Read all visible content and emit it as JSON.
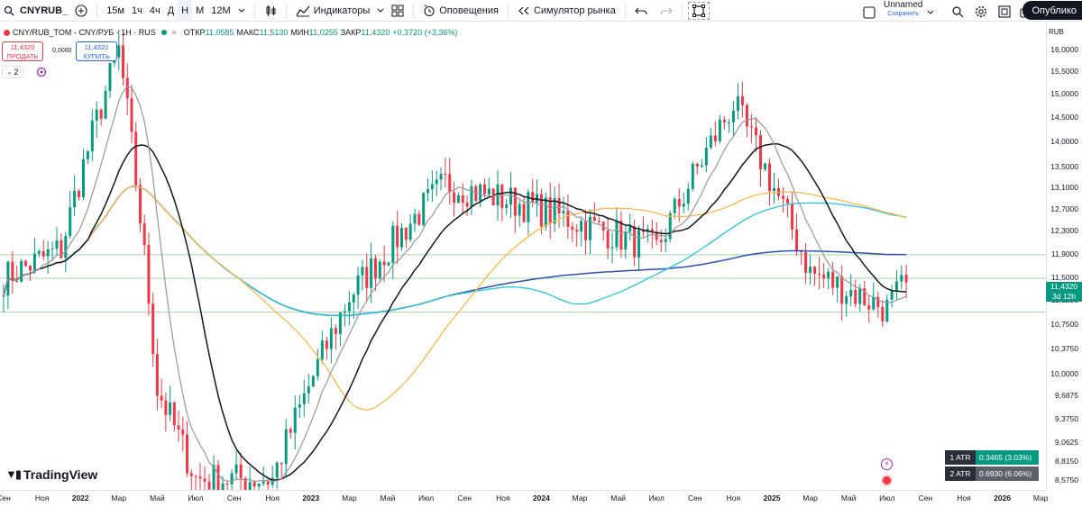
{
  "toolbar": {
    "symbol": "CNYRUB_",
    "intervals": [
      "15м",
      "1ч",
      "4ч",
      "Д",
      "Н",
      "М",
      "12М"
    ],
    "active_interval": "Н",
    "indicators_label": "Индикаторы",
    "alerts_label": "Оповещения",
    "replay_label": "Симулятор рынка",
    "layout_name": "Unnamed",
    "layout_status": "Сохранить",
    "publish_label": "Опублико"
  },
  "legend": {
    "title": "CNY/RUB_TOM - CNY/РУБ · 1H · RUS",
    "open_label": "ОТКР",
    "open": "11,0585",
    "high_label": "МАКС",
    "high": "11,5130",
    "low_label": "МИН",
    "low": "11,0255",
    "close_label": "ЗАКР",
    "close": "11,4320",
    "change": "+0,3720 (+3,36%)"
  },
  "trade": {
    "sell_price": "11,4320",
    "sell_label": "ПРОДАТЬ",
    "spread": "0,0000",
    "buy_price": "11,4320",
    "buy_label": "КУПИТЬ",
    "indicator_count": "2"
  },
  "price_axis": {
    "currency": "RUB",
    "labels": [
      "16,0000",
      "15,5000",
      "15,0000",
      "14,5000",
      "14,0000",
      "13,5000",
      "13,1000",
      "12,7000",
      "12,3000",
      "11,9000",
      "11,5000",
      "11,1250",
      "10,7500",
      "10,3750",
      "10,0000",
      "9,6875",
      "9,3750",
      "9,0625",
      "8,8150",
      "8,5750"
    ],
    "last_price": "11,4320",
    "last_time": "3d 12h"
  },
  "time_axis": [
    {
      "label": "Сен",
      "bold": false
    },
    {
      "label": "Ноя",
      "bold": false
    },
    {
      "label": "2022",
      "bold": true
    },
    {
      "label": "Мар",
      "bold": false
    },
    {
      "label": "Май",
      "bold": false
    },
    {
      "label": "Июл",
      "bold": false
    },
    {
      "label": "Сен",
      "bold": false
    },
    {
      "label": "Ноя",
      "bold": false
    },
    {
      "label": "2023",
      "bold": true
    },
    {
      "label": "Мар",
      "bold": false
    },
    {
      "label": "Май",
      "bold": false
    },
    {
      "label": "Июл",
      "bold": false
    },
    {
      "label": "Сен",
      "bold": false
    },
    {
      "label": "Ноя",
      "bold": false
    },
    {
      "label": "2024",
      "bold": true
    },
    {
      "label": "Мар",
      "bold": false
    },
    {
      "label": "Май",
      "bold": false
    },
    {
      "label": "Июл",
      "bold": false
    },
    {
      "label": "Сен",
      "bold": false
    },
    {
      "label": "Ноя",
      "bold": false
    },
    {
      "label": "2025",
      "bold": true
    },
    {
      "label": "Мар",
      "bold": false
    },
    {
      "label": "Май",
      "bold": false
    },
    {
      "label": "Июл",
      "bold": false
    },
    {
      "label": "Сен",
      "bold": false
    },
    {
      "label": "Ноя",
      "bold": false
    },
    {
      "label": "2026",
      "bold": true
    },
    {
      "label": "Мар",
      "bold": false
    }
  ],
  "atr": [
    {
      "label": "1 ATR",
      "value": "0.3465 (3.03%)",
      "color": "#089981"
    },
    {
      "label": "2 ATR",
      "value": "0.6930 (6.06%)",
      "color": "#5d606b"
    }
  ],
  "logo": "TradingView",
  "colors": {
    "up": "#089981",
    "down": "#f23645",
    "ma_fast": "#9598a1",
    "ma_black": "#131722",
    "ma_orange": "#ffb74d",
    "ma_cyan": "#26c6da",
    "ma_blue": "#2e4fb0"
  },
  "chart_data": {
    "type": "candlestick",
    "ylim": [
      8.575,
      16.25
    ],
    "y_scale": "log",
    "horizontal_levels": [
      11.9,
      11.5,
      10.95
    ],
    "key_closes": [
      {
        "date": "2021-09",
        "close": 11.5
      },
      {
        "date": "2021-12",
        "close": 12.0
      },
      {
        "date": "2022-03",
        "close": 16.0
      },
      {
        "date": "2022-05",
        "close": 9.8
      },
      {
        "date": "2022-07",
        "close": 8.6
      },
      {
        "date": "2022-11",
        "close": 8.6
      },
      {
        "date": "2023-03",
        "close": 11.2
      },
      {
        "date": "2023-08",
        "close": 13.2
      },
      {
        "date": "2024-01",
        "close": 12.7
      },
      {
        "date": "2024-07",
        "close": 12.0
      },
      {
        "date": "2024-11",
        "close": 14.8
      },
      {
        "date": "2025-03",
        "close": 11.6
      },
      {
        "date": "2025-07",
        "close": 11.0
      },
      {
        "date": "2025-08",
        "close": 11.432
      }
    ]
  }
}
